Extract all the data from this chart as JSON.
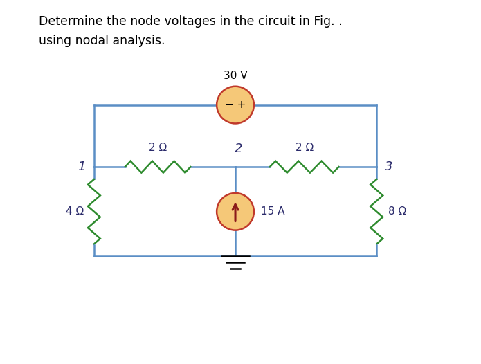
{
  "bg_color": "#ffffff",
  "title_line1": "Determine the node voltages in the circuit in Fig. .",
  "title_line2": "using nodal analysis.",
  "title_fontsize": 12.5,
  "circuit_color": "#5b8ec5",
  "resistor_color": "#2e8b2e",
  "source_fill": "#f5c878",
  "source_outline": "#c0392b",
  "arrow_color": "#8b1a1a",
  "text_color": "#2b2b6b",
  "node1_label": "1",
  "node2_label": "2",
  "node3_label": "3",
  "r1_label": "2 Ω",
  "r2_label": "2 Ω",
  "r3_label": "4 Ω",
  "r4_label": "8 Ω",
  "v_label": "30 V",
  "i_label": "15 A",
  "minus_label": "− +",
  "ground_color": "#000000",
  "lw_wire": 1.8,
  "lw_res": 1.8,
  "lw_src": 1.8
}
